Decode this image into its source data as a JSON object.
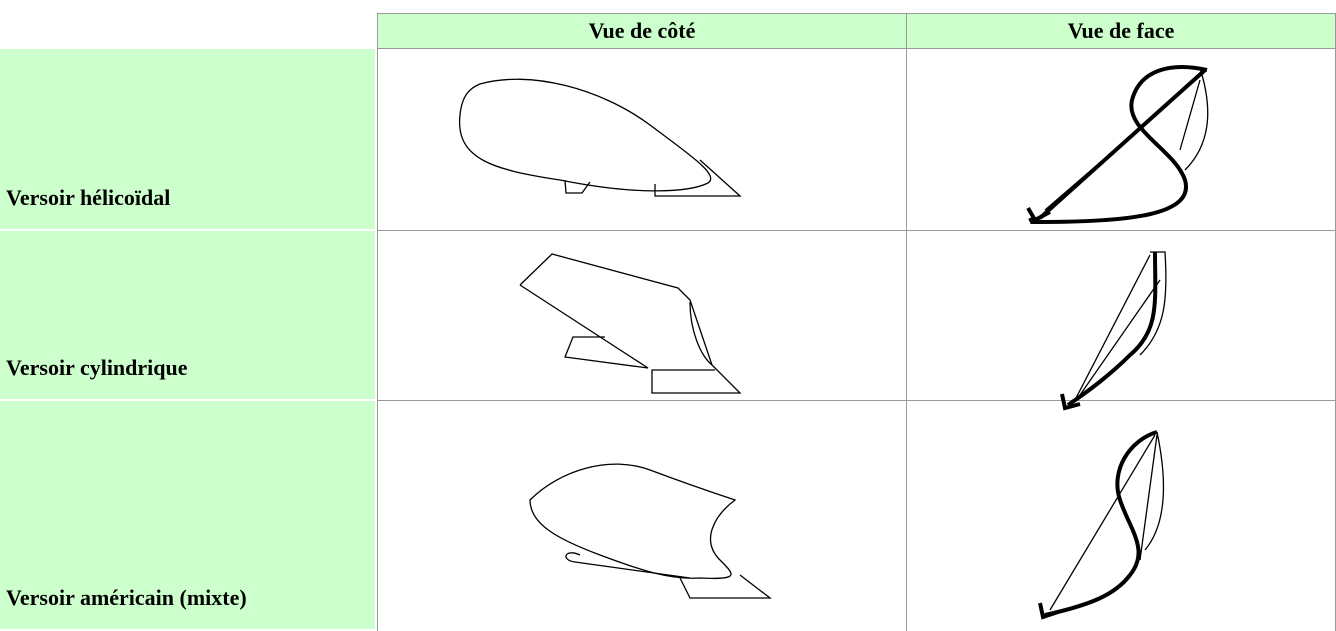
{
  "table": {
    "header": [
      "Vue de côté",
      "Vue de face"
    ],
    "rows": [
      "Versoir hélicoïdal",
      "Versoir cylindrique",
      "Versoir américain (mixte)"
    ]
  }
}
